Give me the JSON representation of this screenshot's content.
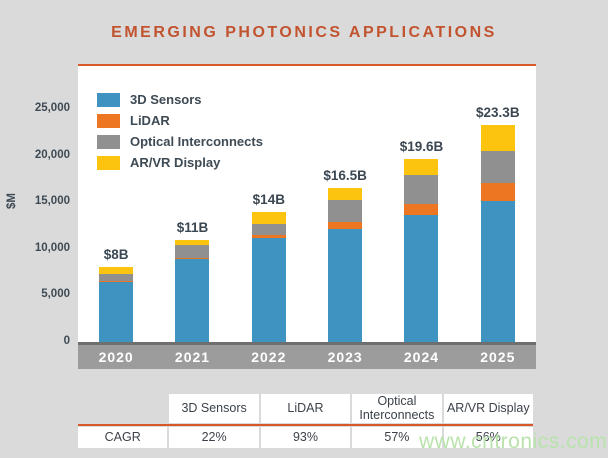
{
  "title": "EMERGING PHOTONICS APPLICATIONS",
  "watermark": "www.cntronics.com",
  "colors": {
    "background": "#dadada",
    "plot_background": "#ffffff",
    "title_text": "#c2532f",
    "accent_line": "#d8582b",
    "axis_band": "#9c9c9c",
    "axis_band_edge": "#6f6f6f",
    "dark_text": "#3e4a54",
    "year_text": "#ffffff",
    "watermark_text": "#b9e3ac"
  },
  "chart_data": {
    "type": "bar",
    "stacked": true,
    "title": "EMERGING PHOTONICS APPLICATIONS",
    "categories": [
      "2020",
      "2021",
      "2022",
      "2023",
      "2024",
      "2025"
    ],
    "series": [
      {
        "name": "3D Sensors",
        "color": "#3e93c1",
        "values": [
          6450,
          8950,
          11200,
          12150,
          13600,
          15100
        ]
      },
      {
        "name": "LiDAR",
        "color": "#ed7623",
        "values": [
          50,
          100,
          320,
          700,
          1250,
          1950
        ]
      },
      {
        "name": "Optical Interconnects",
        "color": "#909090",
        "values": [
          800,
          1350,
          1150,
          2350,
          3050,
          3400
        ]
      },
      {
        "name": "AR/VR Display",
        "color": "#fcc40f",
        "values": [
          700,
          600,
          1330,
          1300,
          1700,
          2850
        ]
      }
    ],
    "totals": [
      "$8B",
      "$11B",
      "$14B",
      "$16.5B",
      "$19.6B",
      "$23.3B"
    ],
    "xlabel": "",
    "ylabel": "$M",
    "ylim": [
      0,
      25000
    ],
    "yticks": [
      "0",
      "5,000",
      "10,000",
      "15,000",
      "20,000",
      "25,000"
    ],
    "grid": false,
    "legend_position": "inside-top-left"
  },
  "table": {
    "headers": [
      "",
      "3D Sensors",
      "LiDAR",
      "Optical Interconnects",
      "AR/VR Display"
    ],
    "row_label": "CAGR",
    "rows": [
      [
        "CAGR",
        "22%",
        "93%",
        "57%",
        "56%"
      ]
    ]
  }
}
